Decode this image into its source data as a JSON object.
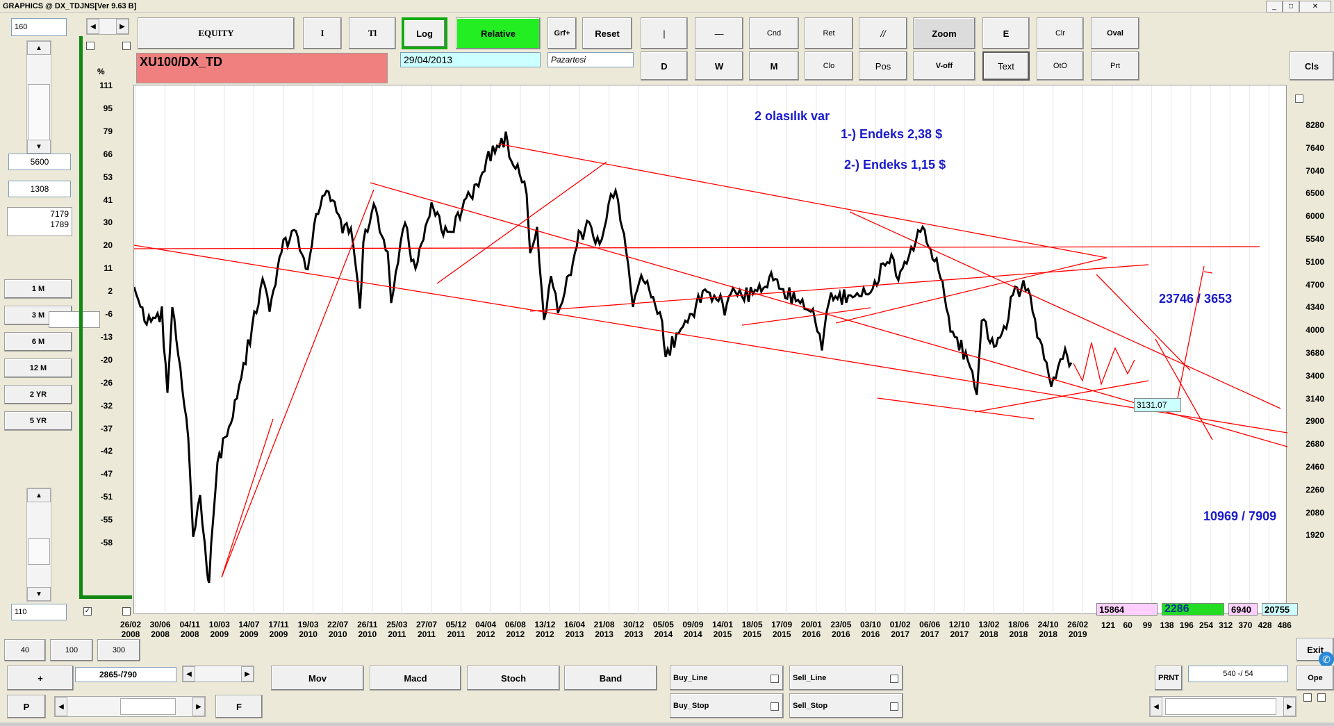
{
  "window": {
    "title": "GRAPHICS  @ DX_TDJNS[Ver 9.63 B]"
  },
  "toolbar": {
    "equity": "EQUITY",
    "i": "I",
    "tl": "Tl",
    "log": "Log",
    "relative": "Relative",
    "grf": "Grf+",
    "reset": "Reset",
    "vline": "|",
    "hline": "—",
    "cnd": "Cnd",
    "ret": "Ret",
    "parallel": "//",
    "zoom": "Zoom",
    "e": "E",
    "clr": "Clr",
    "oval": "Oval",
    "d": "D",
    "w": "W",
    "m": "M",
    "clo": "Clo",
    "pos": "Pos",
    "voff": "V-off",
    "text": "Text",
    "oto": "OtO",
    "prt": "Prt",
    "cls": "Cls"
  },
  "symbol": {
    "name": "XU100/DX_TD",
    "date": "29/04/2013",
    "day": "Pazartesi"
  },
  "left": {
    "top_value": "160",
    "v1": "5600",
    "v2": "1308",
    "v3a": "7179",
    "v3b": "1789",
    "periods": [
      "1 M",
      "3 M",
      "6 M",
      "12 M",
      "2 YR",
      "5 YR"
    ],
    "bottom_value": "110"
  },
  "left_axis": {
    "unit": "%",
    "labels": [
      "111",
      "95",
      "79",
      "66",
      "53",
      "41",
      "30",
      "20",
      "11",
      "2",
      "-6",
      "-13",
      "-20",
      "-26",
      "-32",
      "-37",
      "-42",
      "-47",
      "-51",
      "-55",
      "-58"
    ]
  },
  "right_axis": {
    "labels": [
      "8280",
      "7640",
      "7040",
      "6500",
      "6000",
      "5540",
      "5100",
      "4700",
      "4340",
      "4000",
      "3680",
      "3400",
      "3140",
      "2900",
      "2680",
      "2460",
      "2260",
      "2080",
      "1920"
    ]
  },
  "x_axis": {
    "dates": [
      [
        "26/02",
        "2008"
      ],
      [
        "30/06",
        "2008"
      ],
      [
        "04/11",
        "2008"
      ],
      [
        "10/03",
        "2009"
      ],
      [
        "14/07",
        "2009"
      ],
      [
        "17/11",
        "2009"
      ],
      [
        "19/03",
        "2010"
      ],
      [
        "22/07",
        "2010"
      ],
      [
        "26/11",
        "2010"
      ],
      [
        "25/03",
        "2011"
      ],
      [
        "27/07",
        "2011"
      ],
      [
        "05/12",
        "2011"
      ],
      [
        "04/04",
        "2012"
      ],
      [
        "06/08",
        "2012"
      ],
      [
        "13/12",
        "2012"
      ],
      [
        "16/04",
        "2013"
      ],
      [
        "21/08",
        "2013"
      ],
      [
        "30/12",
        "2013"
      ],
      [
        "05/05",
        "2014"
      ],
      [
        "09/09",
        "2014"
      ],
      [
        "14/01",
        "2015"
      ],
      [
        "18/05",
        "2015"
      ],
      [
        "17/09",
        "2015"
      ],
      [
        "20/01",
        "2016"
      ],
      [
        "23/05",
        "2016"
      ],
      [
        "03/10",
        "2016"
      ],
      [
        "01/02",
        "2017"
      ],
      [
        "06/06",
        "2017"
      ],
      [
        "12/10",
        "2017"
      ],
      [
        "13/02",
        "2018"
      ],
      [
        "18/06",
        "2018"
      ],
      [
        "24/10",
        "2018"
      ],
      [
        "26/02",
        "2019"
      ]
    ],
    "future": [
      "121",
      "60",
      "99",
      "138",
      "196",
      "254",
      "312",
      "370",
      "428",
      "486"
    ]
  },
  "annotations": {
    "title": "2 olasılık var",
    "line1": "1-) Endeks 2,38 $",
    "line2": "2-) Endeks 1,15 $",
    "upper_target": "23746 / 3653",
    "lower_target": "10969 / 7909",
    "last_value": "3131.07"
  },
  "stats": {
    "s1": "15864",
    "s2": "2286",
    "s3": "6940",
    "s4": "20755"
  },
  "bottom": {
    "b40": "40",
    "b100": "100",
    "b300": "300",
    "plus": "+",
    "counter": "2865-/790",
    "mov": "Mov",
    "macd": "Macd",
    "stoch": "Stoch",
    "band": "Band",
    "buy_line": "Buy_Line",
    "sell_line": "Sell_Line",
    "buy_stop": "Buy_Stop",
    "sell_stop": "Sell_Stop",
    "p": "P",
    "f": "F",
    "prnt": "PRNT",
    "ratio": "540 -/ 54",
    "exit": "Exit",
    "ope": "Ope"
  },
  "colors": {
    "price": "#000000",
    "trend": "#ff0000",
    "annotation": "#1a1acc",
    "frame": "#118811"
  }
}
